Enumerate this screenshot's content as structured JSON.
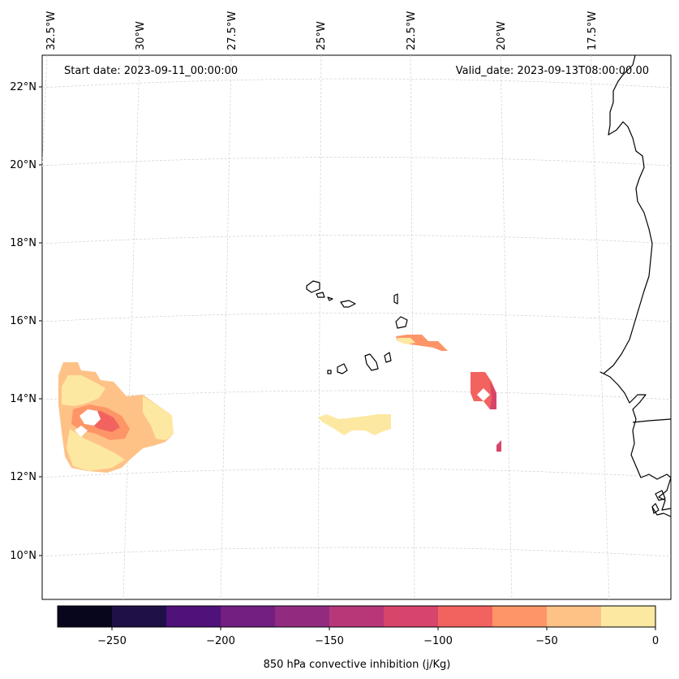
{
  "header": {
    "start_date": "Start date: 2023-09-11_00:00:00",
    "valid_date": "Valid_date: 2023-09-13T08:00:00.00"
  },
  "axes": {
    "lon_labels": [
      "32.5°W",
      "30°W",
      "27.5°W",
      "25°W",
      "22.5°W",
      "20°W",
      "17.5°W"
    ],
    "lat_labels": [
      "22°N",
      "20°N",
      "18°N",
      "16°N",
      "14°N",
      "12°N",
      "10°N"
    ]
  },
  "colorbar": {
    "label": "850 hPa convective inhibition (j/Kg)",
    "tick_labels": [
      "−250",
      "−200",
      "−150",
      "−100",
      "−50",
      "0"
    ],
    "colors": [
      "#07061c",
      "#1f1147",
      "#4f117a",
      "#721f81",
      "#922b80",
      "#b73779",
      "#d8456c",
      "#f2635f",
      "#fd9567",
      "#fec287",
      "#fde8a2"
    ],
    "bounds": [
      -275,
      -250,
      -225,
      -200,
      -175,
      -150,
      -125,
      -100,
      -75,
      -50,
      -25,
      0
    ]
  },
  "legend": {
    "fill_colors": {
      "yellow": "#fde8a2",
      "light_orange": "#fec287",
      "orange": "#fd9567",
      "salmon": "#f2635f",
      "red_pink": "#d8456c"
    }
  }
}
